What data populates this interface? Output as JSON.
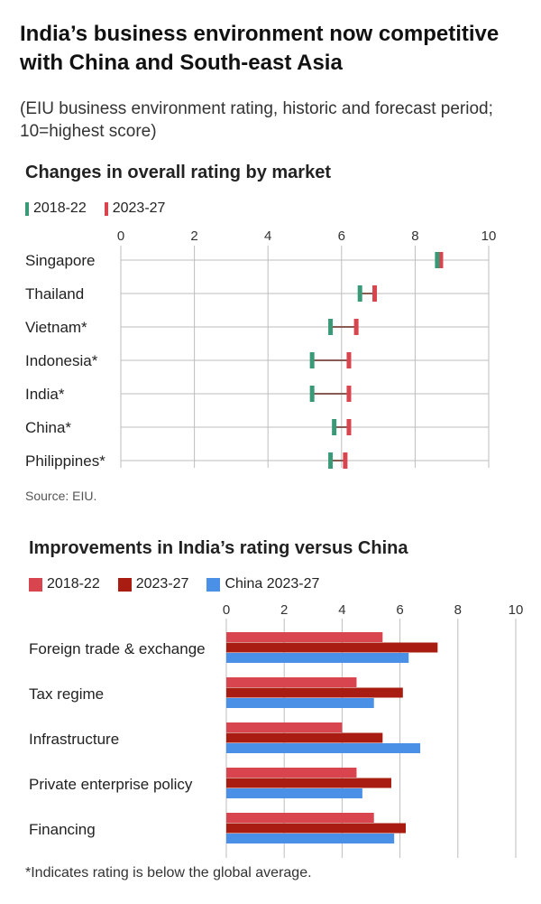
{
  "header": {
    "title": "India’s business environment now competitive with China and South-east Asia",
    "subtitle": "(EIU business environment rating, historic and forecast period; 10=highest score)"
  },
  "colors": {
    "green": "#3a9a78",
    "red": "#d8454e",
    "dark_red": "#a81c12",
    "blue": "#4a90e6",
    "grid": "#bdbdbd",
    "connector": "#8a5a55"
  },
  "chart_data": [
    {
      "type": "dumbbell",
      "title": "Changes in overall rating by market",
      "legend": [
        "2018-22",
        "2023-27"
      ],
      "xlim": [
        0,
        10
      ],
      "ticks": [
        "0",
        "2",
        "4",
        "6",
        "8",
        "10"
      ],
      "categories": [
        "Singapore",
        "Thailand",
        "Vietnam*",
        "Indonesia*",
        "India*",
        "China*",
        "Philippines*"
      ],
      "series": [
        {
          "name": "2018-22",
          "values": [
            8.6,
            6.5,
            5.7,
            5.2,
            5.2,
            5.8,
            5.7
          ]
        },
        {
          "name": "2023-27",
          "values": [
            8.7,
            6.9,
            6.4,
            6.2,
            6.2,
            6.2,
            6.1
          ]
        }
      ],
      "source": "Source: EIU."
    },
    {
      "type": "bar",
      "orientation": "horizontal",
      "title": "Improvements in India’s rating versus China",
      "legend": [
        "2018-22",
        "2023-27",
        "China 2023-27"
      ],
      "xlim": [
        0,
        10
      ],
      "ticks": [
        "0",
        "2",
        "4",
        "6",
        "8",
        "10"
      ],
      "categories": [
        "Foreign trade & exchange",
        "Tax regime",
        "Infrastructure",
        "Private enterprise policy",
        "Financing"
      ],
      "series": [
        {
          "name": "2018-22",
          "values": [
            5.4,
            4.5,
            4.0,
            4.5,
            5.1
          ]
        },
        {
          "name": "2023-27",
          "values": [
            7.3,
            6.1,
            5.4,
            5.7,
            6.2
          ]
        },
        {
          "name": "China 2023-27",
          "values": [
            6.3,
            5.1,
            6.7,
            4.7,
            5.8
          ]
        }
      ]
    }
  ],
  "footnote": "*Indicates rating is below the global average."
}
